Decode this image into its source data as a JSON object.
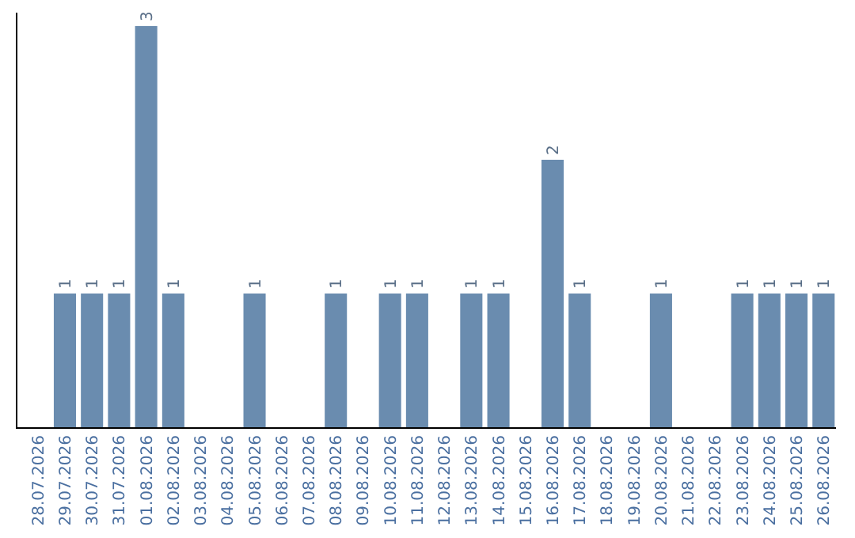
{
  "chart_data": {
    "type": "bar",
    "categories": [
      "28.07.2026",
      "29.07.2026",
      "30.07.2026",
      "31.07.2026",
      "01.08.2026",
      "02.08.2026",
      "03.08.2026",
      "04.08.2026",
      "05.08.2026",
      "06.08.2026",
      "07.08.2026",
      "08.08.2026",
      "09.08.2026",
      "10.08.2026",
      "11.08.2026",
      "12.08.2026",
      "13.08.2026",
      "14.08.2026",
      "15.08.2026",
      "16.08.2026",
      "17.08.2026",
      "18.08.2026",
      "19.08.2026",
      "20.08.2026",
      "21.08.2026",
      "22.08.2026",
      "23.08.2026",
      "24.08.2026",
      "25.08.2026",
      "26.08.2026"
    ],
    "values": [
      0,
      1,
      1,
      1,
      3,
      1,
      0,
      0,
      1,
      0,
      0,
      1,
      0,
      1,
      1,
      0,
      1,
      1,
      0,
      2,
      1,
      0,
      0,
      1,
      0,
      0,
      1,
      1,
      1,
      1
    ],
    "value_labels": [
      null,
      "1",
      "1",
      "1",
      "3",
      "1",
      null,
      null,
      "1",
      null,
      null,
      "1",
      null,
      "1",
      "1",
      null,
      "1",
      "1",
      null,
      "2",
      "1",
      null,
      null,
      "1",
      null,
      null,
      "1",
      "1",
      "1",
      "1"
    ],
    "color": "#6a8caf",
    "ylim": [
      0,
      3.1
    ],
    "tick_labels": "x"
  }
}
